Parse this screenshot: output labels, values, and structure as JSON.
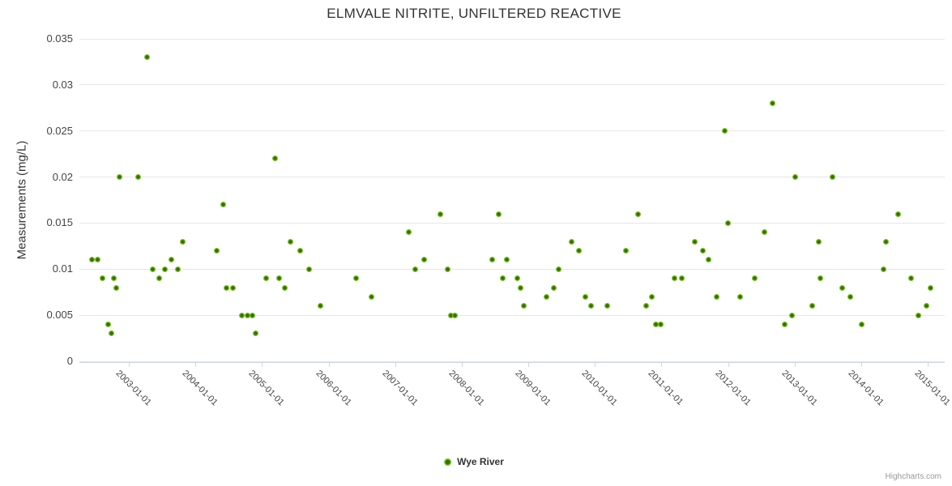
{
  "credits": "Highcharts.com",
  "colors": {
    "marker_outer": "#7CC11E",
    "marker_core": "#2F6F00",
    "grid": "#E6E6E6",
    "axis_line": "#CCD6EB",
    "title_text": "#333333",
    "label_text": "#444444",
    "legend_text": "#333333",
    "credits_text": "#999999"
  },
  "chart_data": {
    "type": "scatter",
    "title": "ELMVALE NITRITE, UNFILTERED REACTIVE",
    "xlabel": "",
    "ylabel": "Measurements (mg/L)",
    "grid": true,
    "legend_position": "bottom-center",
    "ylim": [
      0,
      0.035
    ],
    "xlim_year_frac": [
      2002.2577,
      2015.254
    ],
    "yticks": [
      0,
      0.005,
      0.01,
      0.015,
      0.02,
      0.025,
      0.03,
      0.035
    ],
    "ytick_labels": [
      "0",
      "0.005",
      "0.01",
      "0.015",
      "0.02",
      "0.025",
      "0.03",
      "0.035"
    ],
    "xticks": [
      "2003-01-01",
      "2004-01-01",
      "2005-01-01",
      "2006-01-01",
      "2007-01-01",
      "2008-01-01",
      "2009-01-01",
      "2010-01-01",
      "2011-01-01",
      "2012-01-01",
      "2013-01-01",
      "2014-01-01",
      "2015-01-01"
    ],
    "series": [
      {
        "name": "Wye River",
        "color": "#7CC11E",
        "points": [
          [
            "2002-06-11",
            0.011
          ],
          [
            "2002-07-14",
            0.011
          ],
          [
            "2002-08-10",
            0.009
          ],
          [
            "2002-09-08",
            0.004
          ],
          [
            "2002-09-27",
            0.003
          ],
          [
            "2002-10-11",
            0.009
          ],
          [
            "2002-10-22",
            0.008
          ],
          [
            "2002-11-13",
            0.02
          ],
          [
            "2003-02-21",
            0.02
          ],
          [
            "2003-04-11",
            0.033
          ],
          [
            "2003-05-13",
            0.01
          ],
          [
            "2003-06-17",
            0.009
          ],
          [
            "2003-07-19",
            0.01
          ],
          [
            "2003-08-22",
            0.011
          ],
          [
            "2003-09-28",
            0.01
          ],
          [
            "2003-10-23",
            0.013
          ],
          [
            "2004-04-29",
            0.012
          ],
          [
            "2004-06-02",
            0.017
          ],
          [
            "2004-06-21",
            0.008
          ],
          [
            "2004-07-23",
            0.008
          ],
          [
            "2004-09-13",
            0.005
          ],
          [
            "2004-10-13",
            0.005
          ],
          [
            "2004-11-11",
            0.005
          ],
          [
            "2004-11-26",
            0.003
          ],
          [
            "2005-01-22",
            0.009
          ],
          [
            "2005-03-12",
            0.022
          ],
          [
            "2005-04-06",
            0.009
          ],
          [
            "2005-05-04",
            0.008
          ],
          [
            "2005-06-07",
            0.013
          ],
          [
            "2005-07-29",
            0.012
          ],
          [
            "2005-09-16",
            0.01
          ],
          [
            "2005-11-17",
            0.006
          ],
          [
            "2006-06-02",
            0.009
          ],
          [
            "2006-08-22",
            0.007
          ],
          [
            "2007-03-17",
            0.014
          ],
          [
            "2007-04-19",
            0.01
          ],
          [
            "2007-06-10",
            0.011
          ],
          [
            "2007-09-08",
            0.016
          ],
          [
            "2007-10-15",
            0.01
          ],
          [
            "2007-11-02",
            0.005
          ],
          [
            "2007-11-24",
            0.005
          ],
          [
            "2008-06-16",
            0.011
          ],
          [
            "2008-07-23",
            0.016
          ],
          [
            "2008-08-15",
            0.009
          ],
          [
            "2008-09-05",
            0.011
          ],
          [
            "2008-10-30",
            0.009
          ],
          [
            "2008-11-19",
            0.008
          ],
          [
            "2008-12-06",
            0.006
          ],
          [
            "2009-04-10",
            0.007
          ],
          [
            "2009-05-20",
            0.008
          ],
          [
            "2009-06-17",
            0.01
          ],
          [
            "2009-08-27",
            0.013
          ],
          [
            "2009-10-06",
            0.012
          ],
          [
            "2009-11-09",
            0.007
          ],
          [
            "2009-12-11",
            0.006
          ],
          [
            "2010-03-10",
            0.006
          ],
          [
            "2010-06-21",
            0.012
          ],
          [
            "2010-08-26",
            0.016
          ],
          [
            "2010-10-11",
            0.006
          ],
          [
            "2010-11-09",
            0.007
          ],
          [
            "2010-12-02",
            0.004
          ],
          [
            "2010-12-28",
            0.004
          ],
          [
            "2011-03-15",
            0.009
          ],
          [
            "2011-04-21",
            0.009
          ],
          [
            "2011-07-01",
            0.013
          ],
          [
            "2011-08-15",
            0.012
          ],
          [
            "2011-09-15",
            0.011
          ],
          [
            "2011-10-31",
            0.007
          ],
          [
            "2011-12-14",
            0.025
          ],
          [
            "2012-01-03",
            0.015
          ],
          [
            "2012-03-09",
            0.007
          ],
          [
            "2012-05-27",
            0.009
          ],
          [
            "2012-07-19",
            0.014
          ],
          [
            "2012-09-01",
            0.028
          ],
          [
            "2012-11-08",
            0.004
          ],
          [
            "2012-12-16",
            0.005
          ],
          [
            "2013-01-03",
            0.02
          ],
          [
            "2013-04-06",
            0.006
          ],
          [
            "2013-05-12",
            0.013
          ],
          [
            "2013-05-23",
            0.009
          ],
          [
            "2013-07-29",
            0.02
          ],
          [
            "2013-09-19",
            0.008
          ],
          [
            "2013-11-02",
            0.007
          ],
          [
            "2014-01-04",
            0.004
          ],
          [
            "2014-05-04",
            0.01
          ],
          [
            "2014-05-18",
            0.013
          ],
          [
            "2014-07-24",
            0.016
          ],
          [
            "2014-10-02",
            0.009
          ],
          [
            "2014-11-11",
            0.005
          ],
          [
            "2014-12-25",
            0.006
          ],
          [
            "2015-01-18",
            0.008
          ]
        ]
      }
    ]
  }
}
